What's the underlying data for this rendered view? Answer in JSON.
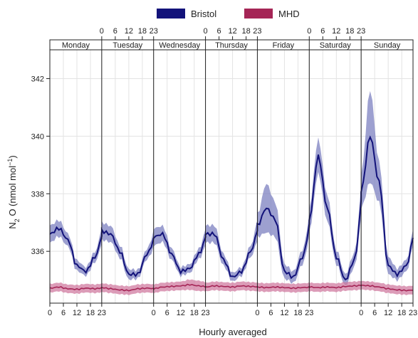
{
  "chart_data": {
    "type": "line",
    "xlabel": "Hourly averaged",
    "ylabel": "N2 O (nmol mol⁻¹)",
    "ylim": [
      334.2,
      343.0
    ],
    "y_ticks": [
      336,
      338,
      340,
      342
    ],
    "x_hour_ticks": [
      "0",
      "6",
      "12",
      "18",
      "23"
    ],
    "days": [
      "Monday",
      "Tuesday",
      "Wednesday",
      "Thursday",
      "Friday",
      "Saturday",
      "Sunday"
    ],
    "grid": true,
    "legend_position": "top",
    "x": "hour of week (0–167), 4-hourly anchors, Monday 00:00 start",
    "series": [
      {
        "name": "Bristol",
        "color": "#12127a",
        "band_color": "#7c80c0",
        "values": [
          336.6,
          336.8,
          336.4,
          335.5,
          335.3,
          335.8,
          336.7,
          336.6,
          336.0,
          335.2,
          335.2,
          335.9,
          336.5,
          336.6,
          335.9,
          335.3,
          335.4,
          335.9,
          336.6,
          336.6,
          335.7,
          335.1,
          335.3,
          336.0,
          336.9,
          337.5,
          337.1,
          335.3,
          335.1,
          335.8,
          337.1,
          339.3,
          337.5,
          335.8,
          335.0,
          335.7,
          338.1,
          340.0,
          338.4,
          335.5,
          335.2,
          335.5,
          336.7
        ],
        "band": [
          0.3,
          0.28,
          0.22,
          0.18,
          0.15,
          0.18,
          0.3,
          0.28,
          0.22,
          0.18,
          0.15,
          0.18,
          0.3,
          0.28,
          0.2,
          0.15,
          0.15,
          0.18,
          0.3,
          0.3,
          0.2,
          0.15,
          0.15,
          0.2,
          0.4,
          0.85,
          0.6,
          0.25,
          0.2,
          0.25,
          0.4,
          0.6,
          0.45,
          0.25,
          0.2,
          0.25,
          0.6,
          1.6,
          0.7,
          0.3,
          0.2,
          0.2,
          0.3
        ]
      },
      {
        "name": "MHD",
        "color": "#a52556",
        "band_color": "#d07ba0",
        "values": [
          334.72,
          334.76,
          334.7,
          334.68,
          334.72,
          334.7,
          334.74,
          334.7,
          334.66,
          334.64,
          334.7,
          334.72,
          334.7,
          334.76,
          334.78,
          334.8,
          334.84,
          334.8,
          334.76,
          334.8,
          334.78,
          334.76,
          334.8,
          334.78,
          334.76,
          334.74,
          334.76,
          334.74,
          334.72,
          334.74,
          334.76,
          334.74,
          334.76,
          334.74,
          334.78,
          334.8,
          334.82,
          334.8,
          334.76,
          334.7,
          334.66,
          334.64,
          334.66
        ],
        "band": [
          0.15,
          0.15,
          0.15,
          0.15,
          0.15,
          0.15,
          0.15,
          0.15,
          0.15,
          0.15,
          0.15,
          0.15,
          0.15,
          0.15,
          0.15,
          0.15,
          0.18,
          0.18,
          0.15,
          0.15,
          0.15,
          0.15,
          0.15,
          0.15,
          0.15,
          0.15,
          0.15,
          0.15,
          0.15,
          0.15,
          0.15,
          0.15,
          0.15,
          0.15,
          0.15,
          0.15,
          0.15,
          0.15,
          0.15,
          0.15,
          0.15,
          0.15,
          0.15
        ]
      }
    ]
  }
}
